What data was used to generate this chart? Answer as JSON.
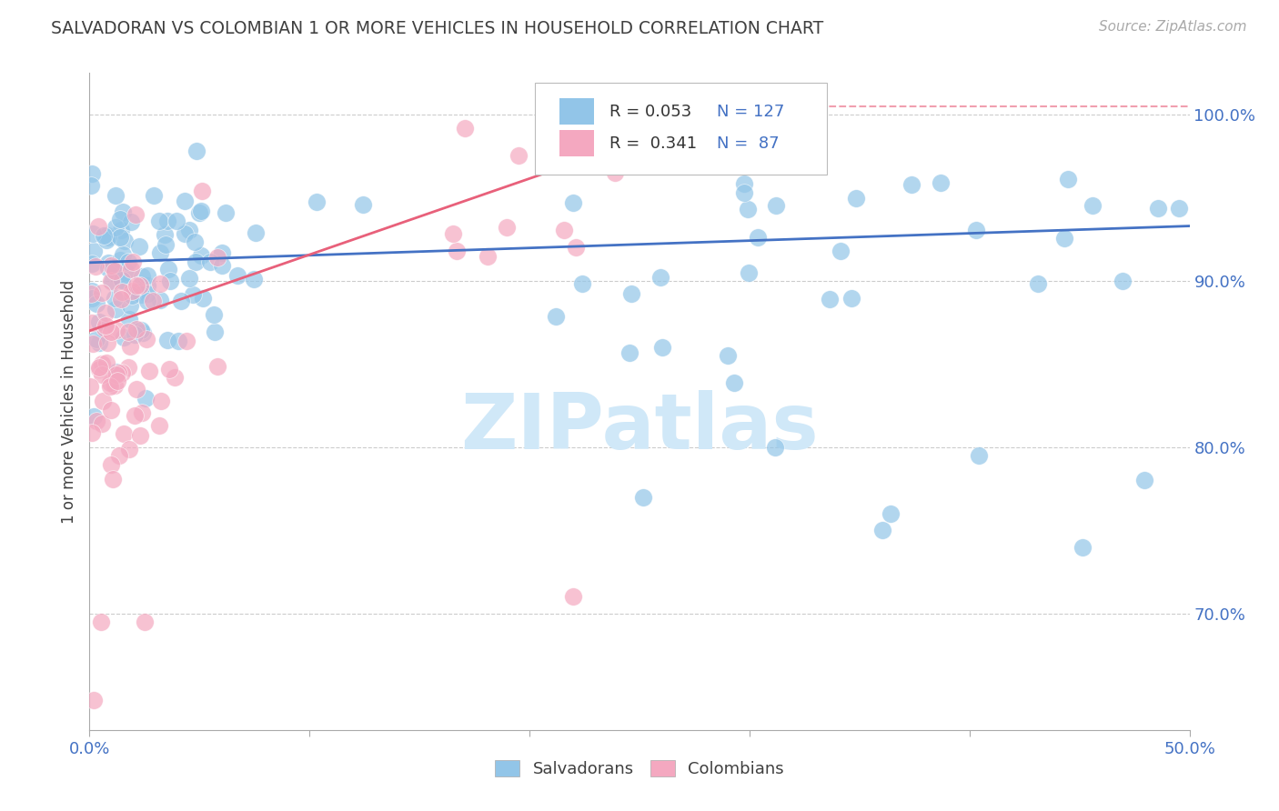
{
  "title": "SALVADORAN VS COLOMBIAN 1 OR MORE VEHICLES IN HOUSEHOLD CORRELATION CHART",
  "source": "Source: ZipAtlas.com",
  "ylabel": "1 or more Vehicles in Household",
  "xlim": [
    0.0,
    0.5
  ],
  "ylim": [
    0.63,
    1.025
  ],
  "ytick_positions": [
    0.7,
    0.8,
    0.9,
    1.0
  ],
  "ytick_labels": [
    "70.0%",
    "80.0%",
    "90.0%",
    "100.0%"
  ],
  "xtick_positions": [
    0.0,
    0.1,
    0.2,
    0.3,
    0.4,
    0.5
  ],
  "xtick_labels": [
    "0.0%",
    "",
    "",
    "",
    "",
    "50.0%"
  ],
  "salvadoran_color": "#92C5E8",
  "colombian_color": "#F4A8C0",
  "trend_blue": "#4472C4",
  "trend_pink": "#E8607A",
  "legend_text_color": "#4472C4",
  "R_salvadoran": 0.053,
  "N_salvadoran": 127,
  "R_colombian": 0.341,
  "N_colombian": 87,
  "watermark_text": "ZIPatlas",
  "watermark_color": "#D0E8F8",
  "background_color": "#FFFFFF",
  "title_color": "#404040",
  "ylabel_color": "#404040",
  "axis_tick_color": "#4472C4",
  "grid_color": "#CCCCCC",
  "legend_bottom_color": "#404040"
}
